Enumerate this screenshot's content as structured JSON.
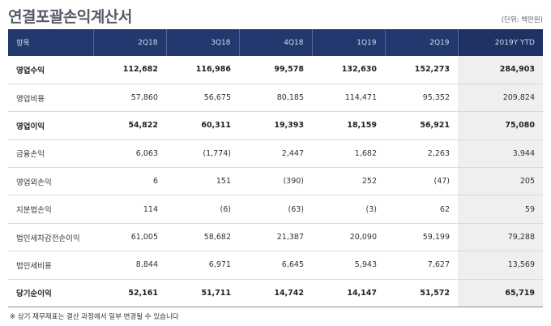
{
  "title": "연결포괄손익계산서",
  "unit": "(단위: 백만원)",
  "columns": [
    "항목",
    "2Q18",
    "3Q18",
    "4Q18",
    "1Q19",
    "2Q19",
    "2019Y YTD"
  ],
  "rows": [
    {
      "label": "영업수익",
      "bold": true,
      "values": [
        "112,682",
        "116,986",
        "99,578",
        "132,630",
        "152,273",
        "284,903"
      ]
    },
    {
      "label": "영업비용",
      "bold": false,
      "values": [
        "57,860",
        "56,675",
        "80,185",
        "114,471",
        "95,352",
        "209,824"
      ]
    },
    {
      "label": "영업이익",
      "bold": true,
      "values": [
        "54,822",
        "60,311",
        "19,393",
        "18,159",
        "56,921",
        "75,080"
      ]
    },
    {
      "label": "금융손익",
      "bold": false,
      "values": [
        "6,063",
        "(1,774)",
        "2,447",
        "1,682",
        "2,263",
        "3,944"
      ]
    },
    {
      "label": "영업외손익",
      "bold": false,
      "values": [
        "6",
        "151",
        "(390)",
        "252",
        "(47)",
        "205"
      ]
    },
    {
      "label": "지분법손익",
      "bold": false,
      "values": [
        "114",
        "(6)",
        "(63)",
        "(3)",
        "62",
        "59"
      ]
    },
    {
      "label": "법인세차감전순이익",
      "bold": false,
      "values": [
        "61,005",
        "58,682",
        "21,387",
        "20,090",
        "59,199",
        "79,288"
      ]
    },
    {
      "label": "법인세비용",
      "bold": false,
      "values": [
        "8,844",
        "6,971",
        "6,645",
        "5,943",
        "7,627",
        "13,569"
      ]
    },
    {
      "label": "당기순이익",
      "bold": true,
      "values": [
        "52,161",
        "51,711",
        "14,742",
        "14,147",
        "51,572",
        "65,719"
      ]
    }
  ],
  "note": "※ 상기 재무재표는 결산 과정에서 일부 변경될 수 있습니다",
  "colors": {
    "header_bg": "#23386e",
    "ytd_bg": "#efefef",
    "title": "#555a66"
  }
}
